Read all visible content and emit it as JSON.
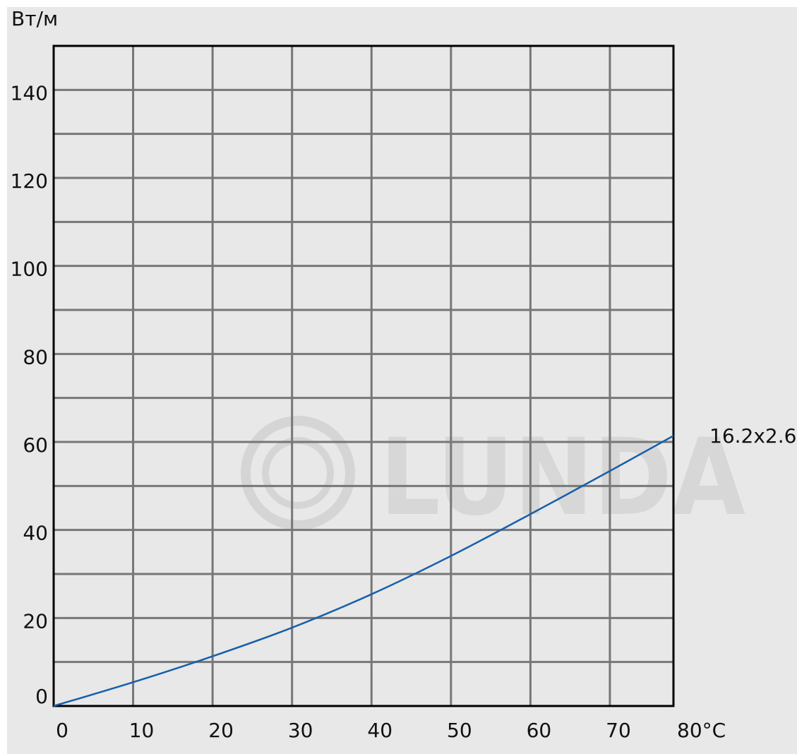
{
  "chart_data": {
    "type": "line",
    "ylabel": "Вт/м",
    "xlabel": "80°C",
    "xlim": [
      0,
      78
    ],
    "ylim": [
      0,
      150
    ],
    "x_ticks": [
      0,
      10,
      20,
      30,
      40,
      50,
      60,
      70
    ],
    "x_tick_labels": [
      "0",
      "10",
      "20",
      "30",
      "40",
      "50",
      "60",
      "70"
    ],
    "y_ticks": [
      0,
      20,
      40,
      60,
      80,
      100,
      120,
      140
    ],
    "y_tick_labels": [
      "0",
      "20",
      "40",
      "60",
      "80",
      "100",
      "120",
      "140"
    ],
    "grid": true,
    "series": [
      {
        "name": "16.2x2.6",
        "color": "#1660aa",
        "x": [
          0,
          10,
          20,
          30,
          40,
          50,
          60,
          70,
          78
        ],
        "y": [
          0,
          5.4,
          11.3,
          17.8,
          25.4,
          34.1,
          43.6,
          53.4,
          61.4
        ]
      }
    ],
    "watermark": "LUNDA"
  }
}
